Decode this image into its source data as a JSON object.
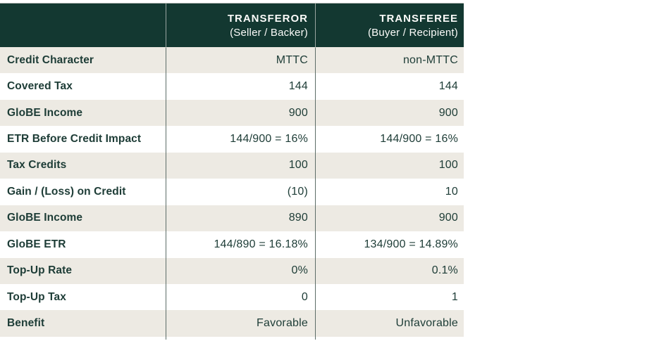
{
  "table": {
    "header": {
      "col2_title": "TRANSFEROR",
      "col2_subtitle": "(Seller / Backer)",
      "col3_title": "TRANSFEREE",
      "col3_subtitle": "(Buyer / Recipient)"
    },
    "rows": [
      {
        "label": "Credit Character",
        "transferor": "MTTC",
        "transferee": "non-MTTC"
      },
      {
        "label": "Covered Tax",
        "transferor": "144",
        "transferee": "144"
      },
      {
        "label": "GloBE Income",
        "transferor": "900",
        "transferee": "900"
      },
      {
        "label": "ETR Before Credit Impact",
        "transferor": "144/900 = 16%",
        "transferee": "144/900 = 16%"
      },
      {
        "label": "Tax Credits",
        "transferor": "100",
        "transferee": "100"
      },
      {
        "label": "Gain / (Loss) on Credit",
        "transferor": "(10)",
        "transferee": "10"
      },
      {
        "label": "GloBE Income",
        "transferor": "890",
        "transferee": "900"
      },
      {
        "label": "GloBE ETR",
        "transferor": "144/890 = 16.18%",
        "transferee": "134/900 = 14.89%"
      },
      {
        "label": "Top-Up Rate",
        "transferor": "0%",
        "transferee": "0.1%"
      },
      {
        "label": "Top-Up Tax",
        "transferor": "0",
        "transferee": "1"
      },
      {
        "label": "Benefit",
        "transferor": "Favorable",
        "transferee": "Unfavorable"
      }
    ],
    "colors": {
      "header_bg": "#133831",
      "header_text": "#fcfcfa",
      "alt_row_bg": "#edeae3",
      "row_bg": "#ffffff",
      "body_text": "#1d3c36",
      "divider_on_header": "#9aa5a1",
      "divider_on_body": "#5d6d68",
      "top_border": "#b7bcb8"
    }
  }
}
